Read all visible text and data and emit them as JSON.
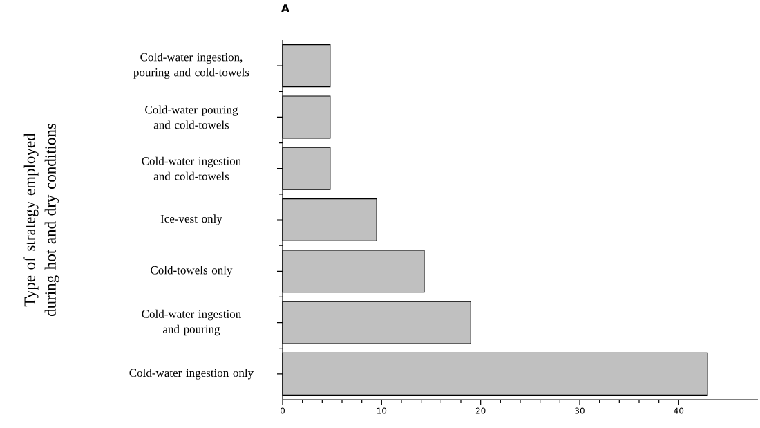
{
  "chart_data": {
    "type": "bar",
    "orientation": "horizontal",
    "title": "A",
    "ylabel": "Type of strategy employed during hot and dry conditions",
    "categories": [
      "Cold-water ingestion, pouring and cold-towels",
      "Cold-water pouring and cold-towels",
      "Cold-water ingestion and cold-towels",
      "Ice-vest only",
      "Cold-towels only",
      "Cold-water ingestion and pouring",
      "Cold-water ingestion only"
    ],
    "values": [
      4.8,
      4.8,
      4.8,
      9.5,
      14.3,
      19.0,
      42.9
    ],
    "color": "#c0c0c0",
    "xlim": [
      0,
      48
    ],
    "xticks": [
      0,
      10,
      20,
      30,
      40
    ]
  }
}
